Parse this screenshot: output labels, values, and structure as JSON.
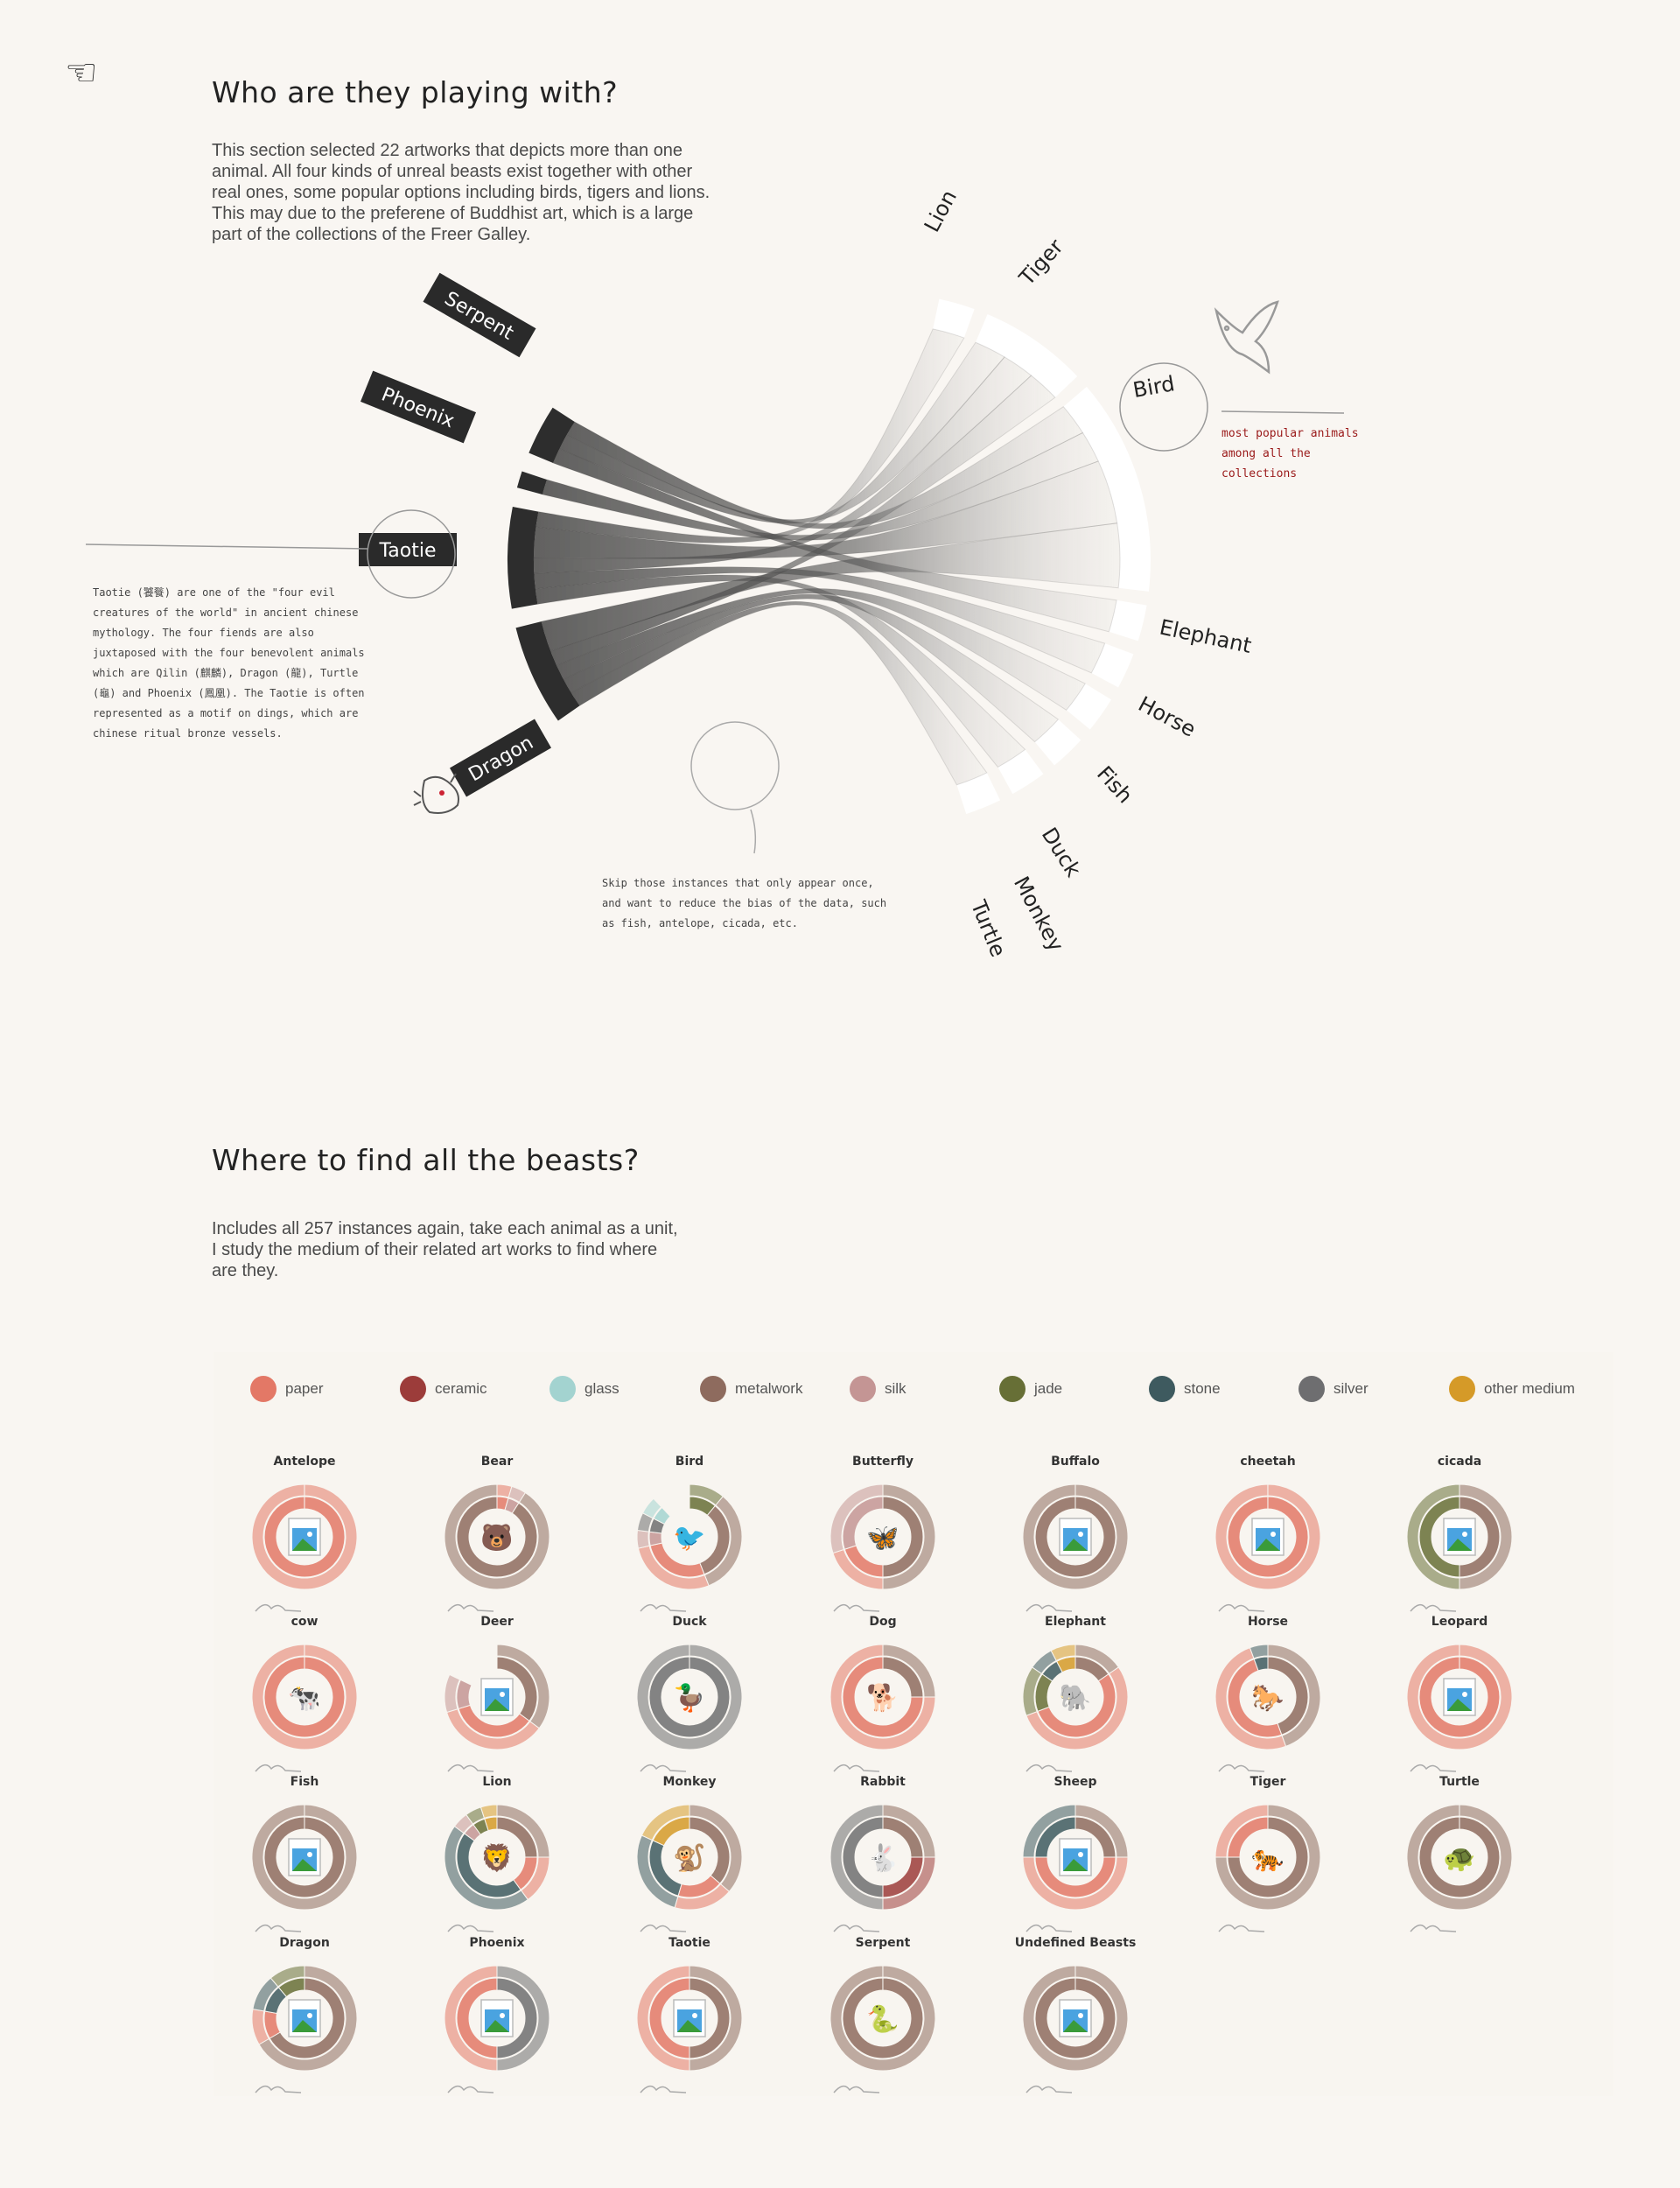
{
  "section1": {
    "title": "Who are they playing with?",
    "body": "This section selected 22 artworks that depicts more than one animal. All four kinds of unreal beasts exist together with other real ones, some popular options including birds, tigers and lions.   This may due to the preferene of Buddhist art, which is a large part of the collections of the Freer Galley."
  },
  "annotations": {
    "taotie_note": "Taotie (饕餮) are one of the \"four evil creatures of the world\" in ancient chinese mythology. The four fiends are also juxtaposed with the four benevolent animals which are Qilin (麒麟), Dragon (龍), Turtle (龜) and Phoenix (鳳凰). The Taotie is often represented as a motif on dings, which are chinese ritual bronze vessels.",
    "bird_note": "most popular animals among all the collections",
    "skip_note": "Skip those instances that only appear once, and want to reduce the bias of the data, such as fish, antelope, cicada, etc."
  },
  "chart_data": [
    {
      "type": "chord",
      "title": "Who are they playing with?",
      "sources": [
        "Serpent",
        "Phoenix",
        "Taotie",
        "Dragon"
      ],
      "targets": [
        "Lion",
        "Tiger",
        "Bird",
        "Elephant",
        "Horse",
        "Fish",
        "Duck",
        "Monkey",
        "Turtle"
      ],
      "source_weights": [
        3,
        1,
        6,
        6
      ],
      "target_weights": [
        1,
        3,
        6,
        1,
        1,
        1,
        1,
        1,
        1
      ],
      "links": [
        {
          "from": "Serpent",
          "to": "Bird",
          "value": 1
        },
        {
          "from": "Serpent",
          "to": "Tiger",
          "value": 1
        },
        {
          "from": "Serpent",
          "to": "Elephant",
          "value": 1
        },
        {
          "from": "Phoenix",
          "to": "Bird",
          "value": 1
        },
        {
          "from": "Taotie",
          "to": "Lion",
          "value": 1
        },
        {
          "from": "Taotie",
          "to": "Bird",
          "value": 2
        },
        {
          "from": "Taotie",
          "to": "Tiger",
          "value": 1
        },
        {
          "from": "Taotie",
          "to": "Horse",
          "value": 1
        },
        {
          "from": "Taotie",
          "to": "Monkey",
          "value": 1
        },
        {
          "from": "Dragon",
          "to": "Bird",
          "value": 2
        },
        {
          "from": "Dragon",
          "to": "Tiger",
          "value": 1
        },
        {
          "from": "Dragon",
          "to": "Fish",
          "value": 1
        },
        {
          "from": "Dragon",
          "to": "Duck",
          "value": 1
        },
        {
          "from": "Dragon",
          "to": "Turtle",
          "value": 1
        }
      ]
    },
    {
      "type": "donut",
      "title": "Where to find all the beasts?",
      "legend": [
        {
          "name": "paper",
          "color": "#e37866"
        },
        {
          "name": "ceramic",
          "color": "#9c3c3a"
        },
        {
          "name": "glass",
          "color": "#a3d3d0"
        },
        {
          "name": "metalwork",
          "color": "#8e6b5e"
        },
        {
          "name": "silk",
          "color": "#c49594"
        },
        {
          "name": "jade",
          "color": "#676f36"
        },
        {
          "name": "stone",
          "color": "#3e5a5f"
        },
        {
          "name": "silver",
          "color": "#6e6e70"
        },
        {
          "name": "other medium",
          "color": "#d59a28"
        }
      ],
      "animals": [
        {
          "name": "Antelope",
          "icon": "image-placeholder-icon",
          "segments": [
            [
              "paper",
              1
            ]
          ]
        },
        {
          "name": "Bear",
          "icon": "bear-icon",
          "segments": [
            [
              "paper",
              1
            ],
            [
              "silk",
              1
            ],
            [
              "metalwork",
              20
            ]
          ]
        },
        {
          "name": "Bird",
          "icon": "bird-icon",
          "segments": [
            [
              "jade",
              2
            ],
            [
              "metalwork",
              6
            ],
            [
              "paper",
              5
            ],
            [
              "silk",
              1
            ],
            [
              "silver",
              1
            ],
            [
              "glass",
              1
            ]
          ],
          "partial": 0.88
        },
        {
          "name": "Butterfly",
          "icon": "butterfly-icon",
          "segments": [
            [
              "metalwork",
              5
            ],
            [
              "paper",
              2
            ],
            [
              "silk",
              3
            ]
          ]
        },
        {
          "name": "Buffalo",
          "icon": "image-placeholder-icon",
          "segments": [
            [
              "metalwork",
              1
            ]
          ]
        },
        {
          "name": "cheetah",
          "icon": "image-placeholder-icon",
          "segments": [
            [
              "paper",
              1
            ]
          ]
        },
        {
          "name": "cicada",
          "icon": "image-placeholder-icon",
          "segments": [
            [
              "metalwork",
              1
            ],
            [
              "jade",
              1
            ]
          ]
        },
        {
          "name": "cow",
          "icon": "cow-icon",
          "segments": [
            [
              "paper",
              1
            ]
          ]
        },
        {
          "name": "Deer",
          "icon": "image-placeholder-icon",
          "segments": [
            [
              "metalwork",
              3
            ],
            [
              "paper",
              3
            ],
            [
              "silk",
              1
            ]
          ],
          "partial": 0.82
        },
        {
          "name": "Duck",
          "icon": "duck-icon",
          "segments": [
            [
              "silver",
              1
            ]
          ]
        },
        {
          "name": "Dog",
          "icon": "dog-icon",
          "segments": [
            [
              "metalwork",
              1
            ],
            [
              "paper",
              3
            ]
          ]
        },
        {
          "name": "Elephant",
          "icon": "elephant-icon",
          "segments": [
            [
              "metalwork",
              2
            ],
            [
              "paper",
              7
            ],
            [
              "jade",
              2
            ],
            [
              "stone",
              1
            ],
            [
              "other medium",
              1
            ]
          ]
        },
        {
          "name": "Horse",
          "icon": "horse-icon",
          "segments": [
            [
              "metalwork",
              8
            ],
            [
              "paper",
              9
            ],
            [
              "stone",
              1
            ]
          ]
        },
        {
          "name": "Leopard",
          "icon": "image-placeholder-icon",
          "segments": [
            [
              "paper",
              1
            ]
          ]
        },
        {
          "name": "Fish",
          "icon": "image-placeholder-icon",
          "segments": [
            [
              "metalwork",
              1
            ]
          ]
        },
        {
          "name": "Lion",
          "icon": "lion-icon",
          "segments": [
            [
              "metalwork",
              5
            ],
            [
              "paper",
              3
            ],
            [
              "stone",
              9
            ],
            [
              "silk",
              1
            ],
            [
              "jade",
              1
            ],
            [
              "other medium",
              1
            ]
          ]
        },
        {
          "name": "Monkey",
          "icon": "monkey-icon",
          "segments": [
            [
              "metalwork",
              4
            ],
            [
              "paper",
              2
            ],
            [
              "stone",
              3
            ],
            [
              "other medium",
              2
            ]
          ]
        },
        {
          "name": "Rabbit",
          "icon": "rabbit-icon",
          "segments": [
            [
              "metalwork",
              1
            ],
            [
              "ceramic",
              1
            ],
            [
              "silver",
              2
            ]
          ]
        },
        {
          "name": "Sheep",
          "icon": "image-placeholder-icon",
          "segments": [
            [
              "metalwork",
              1
            ],
            [
              "paper",
              2
            ],
            [
              "stone",
              1
            ]
          ]
        },
        {
          "name": "Tiger",
          "icon": "tiger-icon",
          "segments": [
            [
              "metalwork",
              3
            ],
            [
              "paper",
              1
            ]
          ]
        },
        {
          "name": "Turtle",
          "icon": "turtle-icon",
          "segments": [
            [
              "metalwork",
              1
            ]
          ]
        },
        {
          "name": "Dragon",
          "icon": "image-placeholder-icon",
          "segments": [
            [
              "metalwork",
              6
            ],
            [
              "paper",
              1
            ],
            [
              "stone",
              1
            ],
            [
              "jade",
              1
            ]
          ]
        },
        {
          "name": "Phoenix",
          "icon": "image-placeholder-icon",
          "segments": [
            [
              "silver",
              1
            ],
            [
              "paper",
              1
            ]
          ]
        },
        {
          "name": "Taotie",
          "icon": "image-placeholder-icon",
          "segments": [
            [
              "metalwork",
              1
            ],
            [
              "paper",
              1
            ]
          ]
        },
        {
          "name": "Serpent",
          "icon": "serpent-icon",
          "segments": [
            [
              "metalwork",
              1
            ]
          ]
        },
        {
          "name": "Undefined Beasts",
          "icon": "image-placeholder-icon",
          "segments": [
            [
              "metalwork",
              1
            ]
          ]
        }
      ]
    }
  ],
  "section2": {
    "title": "Where to find all the beasts?",
    "body": "Includes all 257 instances again, take each animal as a unit,  I study the medium of their related art works to find where are they."
  }
}
